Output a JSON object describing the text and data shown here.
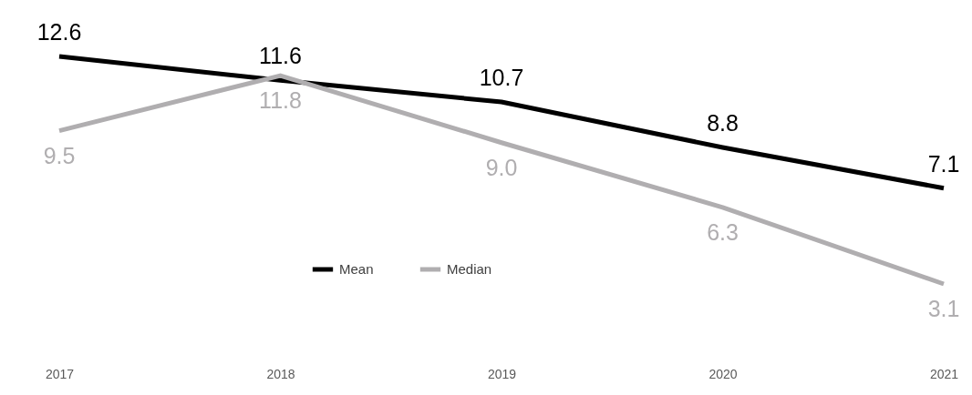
{
  "chart_data": {
    "type": "line",
    "categories": [
      "2017",
      "2018",
      "2019",
      "2020",
      "2021"
    ],
    "series": [
      {
        "name": "Mean",
        "color": "#000000",
        "values": [
          12.6,
          11.6,
          10.7,
          8.8,
          7.1
        ],
        "value_labels": [
          "12.6",
          "11.6",
          "10.7",
          "8.8",
          "7.1"
        ]
      },
      {
        "name": "Median",
        "color": "#b0aeb0",
        "values": [
          9.5,
          11.8,
          9.0,
          6.3,
          3.1
        ],
        "value_labels": [
          "9.5",
          "11.8",
          "9.0",
          "6.3",
          "3.1"
        ]
      }
    ],
    "legend": "bottom",
    "grid": false,
    "marker": "none",
    "line_style": "solid"
  }
}
